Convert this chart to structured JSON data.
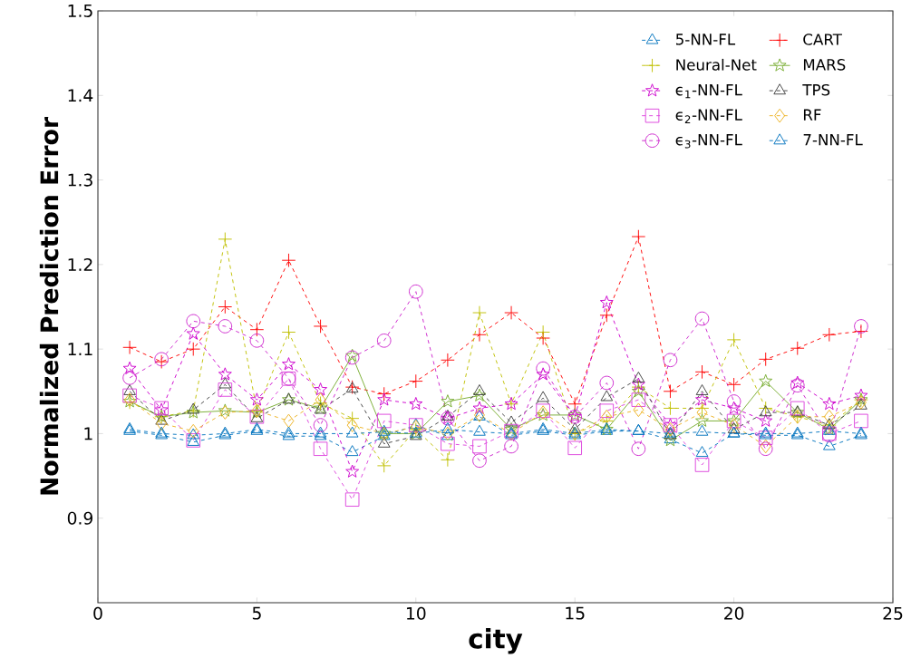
{
  "chart_data": {
    "type": "line",
    "xlabel": "city",
    "ylabel": "Normalized Prediction Error",
    "x": [
      1,
      2,
      3,
      4,
      5,
      6,
      7,
      8,
      9,
      10,
      11,
      12,
      13,
      14,
      15,
      16,
      17,
      18,
      19,
      20,
      21,
      22,
      23,
      24
    ],
    "xlim": [
      0,
      25
    ],
    "xticks": [
      0,
      5,
      10,
      15,
      20,
      25
    ],
    "ylim": [
      0.8,
      1.5
    ],
    "yticks": [
      0.9,
      1,
      1.1,
      1.2,
      1.3,
      1.4,
      1.5
    ],
    "grid": false,
    "legend": "top right",
    "line_style": "dashed",
    "series": [
      {
        "name": "5-NN-FL",
        "color": "#0072bd",
        "marker": "triangle",
        "values": [
          1.003,
          0.998,
          0.99,
          0.998,
          1.003,
          0.997,
          0.997,
          0.978,
          0.997,
          1.01,
          0.997,
          1.02,
          0.998,
          1.003,
          0.998,
          1.003,
          1.003,
          0.993,
          0.977,
          1.0,
          0.998,
          0.998,
          0.985,
          0.998
        ]
      },
      {
        "name": "CART",
        "color": "#ff0000",
        "marker": "cross",
        "values": [
          1.102,
          1.085,
          1.1,
          1.15,
          1.123,
          1.205,
          1.127,
          1.055,
          1.047,
          1.062,
          1.087,
          1.117,
          1.143,
          1.113,
          1.035,
          1.14,
          1.233,
          1.05,
          1.073,
          1.058,
          1.088,
          1.101,
          1.117,
          1.121
        ]
      },
      {
        "name": "Neural-Net",
        "color": "#bfbf00",
        "marker": "cross",
        "values": [
          1.037,
          1.02,
          1.027,
          1.23,
          1.027,
          1.12,
          1.036,
          1.018,
          0.962,
          1.005,
          0.969,
          1.143,
          1.035,
          1.12,
          1.0,
          1.015,
          1.055,
          1.03,
          1.03,
          1.111,
          1.03,
          1.02,
          1.01,
          1.04
        ]
      },
      {
        "name": "MARS",
        "color": "#77ac30",
        "marker": "star",
        "line_style": "solid",
        "values": [
          1.038,
          1.02,
          1.025,
          1.027,
          1.025,
          1.04,
          1.03,
          1.092,
          1.0,
          1.0,
          1.038,
          1.045,
          1.005,
          1.022,
          1.022,
          1.005,
          1.05,
          0.992,
          1.015,
          1.015,
          1.062,
          1.025,
          1.005,
          1.04
        ]
      },
      {
        "name": "ϵ$_{1}$-NN-FL",
        "color": "#cc00cc",
        "marker": "star",
        "values": [
          1.077,
          1.028,
          1.118,
          1.07,
          1.04,
          1.082,
          1.052,
          0.955,
          1.04,
          1.035,
          1.018,
          1.03,
          1.035,
          1.07,
          1.02,
          1.155,
          1.058,
          1.01,
          1.04,
          1.03,
          1.015,
          1.06,
          1.035,
          1.045
        ]
      },
      {
        "name": "TPS",
        "color": "#404040",
        "marker": "triangle",
        "values": [
          1.05,
          1.015,
          1.028,
          1.058,
          1.018,
          1.04,
          1.028,
          1.053,
          0.988,
          0.997,
          1.02,
          1.05,
          1.013,
          1.042,
          1.005,
          1.043,
          1.065,
          0.998,
          1.05,
          1.005,
          1.025,
          1.025,
          1.01,
          1.033
        ]
      },
      {
        "name": "ϵ$_{2}$-NN-FL",
        "color": "#dd44dd",
        "marker": "square",
        "values": [
          1.045,
          1.03,
          0.992,
          1.052,
          1.02,
          1.065,
          0.982,
          0.922,
          1.015,
          1.01,
          0.988,
          0.985,
          1.003,
          1.027,
          0.983,
          1.027,
          1.04,
          1.01,
          0.963,
          1.015,
          0.995,
          1.03,
          1.0,
          1.015
        ]
      },
      {
        "name": "RF",
        "color": "#edb120",
        "marker": "diamond",
        "values": [
          1.04,
          1.012,
          1.003,
          1.025,
          1.027,
          1.015,
          1.04,
          1.01,
          1.0,
          1.008,
          1.0,
          1.022,
          1.0,
          1.025,
          1.0,
          1.02,
          1.028,
          1.005,
          1.025,
          1.01,
          0.985,
          1.02,
          1.02,
          1.037
        ]
      },
      {
        "name": "ϵ$_{3}$-NN-FL",
        "color": "#cc22cc",
        "marker": "circle",
        "values": [
          1.066,
          1.088,
          1.133,
          1.127,
          1.11,
          1.065,
          1.01,
          1.09,
          1.11,
          1.168,
          1.018,
          0.968,
          0.985,
          1.077,
          1.02,
          1.06,
          0.982,
          1.087,
          1.136,
          1.038,
          0.982,
          1.057,
          0.998,
          1.127
        ]
      },
      {
        "name": "7-NN-FL",
        "color": "#0072bd",
        "marker": "triangle",
        "values": [
          1.005,
          1.0,
          0.998,
          1.0,
          1.005,
          1.0,
          1.0,
          1.0,
          1.002,
          1.0,
          1.005,
          1.002,
          1.0,
          1.005,
          1.0,
          1.005,
          1.003,
          1.0,
          1.002,
          1.0,
          1.0,
          1.0,
          1.003,
          1.0
        ]
      }
    ]
  }
}
